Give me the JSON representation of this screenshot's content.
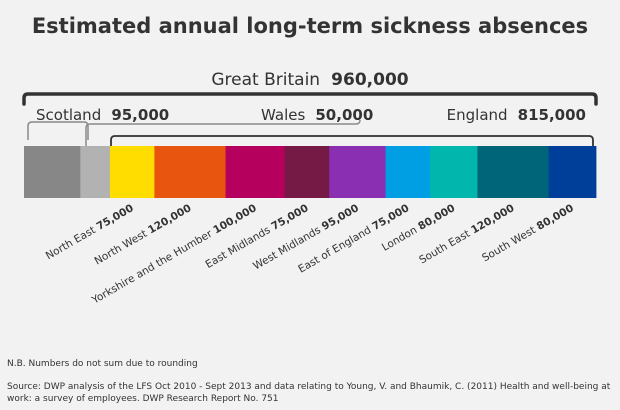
{
  "chart_data": {
    "type": "bar",
    "subtype": "proportional-stacked-bar",
    "title": "Estimated annual long-term sickness absences",
    "total": {
      "name": "Great Britain",
      "value": 960000,
      "value_label": "960,000"
    },
    "groups": [
      {
        "name": "Scotland",
        "value": 95000,
        "value_label": "95,000"
      },
      {
        "name": "Wales",
        "value": 50000,
        "value_label": "50,000"
      },
      {
        "name": "England",
        "value": 815000,
        "value_label": "815,000"
      }
    ],
    "segments": [
      {
        "name": "Scotland",
        "value": 95000,
        "color": "#878787",
        "labeled": false
      },
      {
        "name": "Wales",
        "value": 50000,
        "color": "#b2b2b2",
        "labeled": false
      },
      {
        "name": "North East",
        "value": 75000,
        "value_label": "75,000",
        "color": "#ffdd00",
        "labeled": true
      },
      {
        "name": "North West",
        "value": 120000,
        "value_label": "120,000",
        "color": "#e8550f",
        "labeled": true
      },
      {
        "name": "Yorkshire and the Humber",
        "value": 100000,
        "value_label": "100,000",
        "color": "#b5005e",
        "labeled": true
      },
      {
        "name": "East Midlands",
        "value": 75000,
        "value_label": "75,000",
        "color": "#741a45",
        "labeled": true
      },
      {
        "name": "West Midlands",
        "value": 95000,
        "value_label": "95,000",
        "color": "#8b2fb2",
        "labeled": true
      },
      {
        "name": "East of England",
        "value": 75000,
        "value_label": "75,000",
        "color": "#009fe3",
        "labeled": true
      },
      {
        "name": "London",
        "value": 80000,
        "value_label": "80,000",
        "color": "#00b6ad",
        "labeled": true
      },
      {
        "name": "South East",
        "value": 120000,
        "value_label": "120,000",
        "color": "#006579",
        "labeled": true
      },
      {
        "name": "South West",
        "value": 80000,
        "value_label": "80,000",
        "color": "#003f99",
        "labeled": true
      }
    ]
  },
  "notes": {
    "nb": "N.B. Numbers do not sum due to rounding",
    "source": "Source: DWP analysis of the LFS Oct 2010 - Sept 2013 and data relating to Young, V. and Bhaumik, C. (2011) Health and well-being at work: a survey of employees. DWP Research Report No. 751"
  },
  "colors": {
    "background": "#f2f2f2",
    "text": "#333333",
    "bracket_dark": "#333333",
    "bracket_light": "#8a8a8a"
  }
}
